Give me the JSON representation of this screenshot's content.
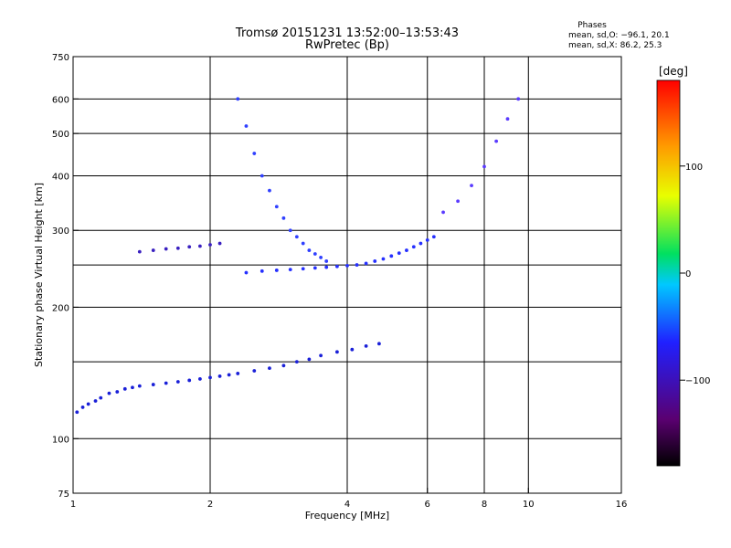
{
  "chart_data": {
    "type": "scatter",
    "title": "Tromsø 20151231 13:52:00–13:53:43",
    "subtitle": "RwPretec (Bp)",
    "xlabel": "Frequency [MHz]",
    "ylabel": "Stationary phase Virtual Height [km]",
    "x_scale": "log",
    "y_scale": "log",
    "xlim": [
      1,
      16
    ],
    "ylim": [
      75,
      750
    ],
    "x_ticks": [
      1,
      2,
      4,
      6,
      8,
      10,
      16
    ],
    "x_tick_labels": [
      "1",
      "2",
      "4",
      "6",
      "8",
      "10",
      "16"
    ],
    "y_ticks": [
      75,
      100,
      200,
      300,
      400,
      500,
      600,
      750
    ],
    "y_tick_labels": [
      "75",
      "100",
      "200",
      "300",
      "400",
      "500",
      "600",
      "750"
    ],
    "x_grid": [
      2,
      4,
      6,
      8,
      10
    ],
    "y_grid": [
      100,
      150,
      200,
      250,
      300,
      400,
      500,
      600
    ],
    "grid": true,
    "legend": {
      "title": "Phases",
      "lines": [
        "mean, sd,O: −96.1, 20.1",
        "mean, sd,X:  86.2, 25.3"
      ],
      "position": "top-right"
    },
    "colorbar": {
      "label": "[deg]",
      "range": [
        -180,
        180
      ],
      "ticks": [
        100,
        0,
        -100
      ],
      "tick_labels": [
        "100",
        "0",
        "−100"
      ],
      "colors": [
        "#000000",
        "#5a0070",
        "#2020ff",
        "#00c8ff",
        "#00e060",
        "#e8ff00",
        "#ff9a00",
        "#ff0000"
      ]
    },
    "series": [
      {
        "x": [
          1.02,
          1.05,
          1.08,
          1.12,
          1.15,
          1.2,
          1.25,
          1.3,
          1.35,
          1.4,
          1.5,
          1.6,
          1.7,
          1.8,
          1.9,
          2.0,
          2.1,
          2.2,
          2.3,
          2.5,
          2.7,
          2.9,
          3.1,
          3.3,
          3.5,
          3.8,
          4.1,
          4.4,
          4.7
        ],
        "y": [
          115,
          118,
          120,
          122,
          124,
          127,
          128,
          130,
          131,
          132,
          133,
          134,
          135,
          136,
          137,
          138,
          139,
          140,
          141,
          143,
          145,
          147,
          150,
          152,
          155,
          158,
          160,
          163,
          165
        ]
      },
      {
        "x": [
          2.4,
          2.6,
          2.8,
          3.0,
          3.2,
          3.4,
          3.6,
          3.8,
          4.0,
          4.2,
          4.4,
          4.6,
          4.8,
          5.0,
          5.2,
          5.4,
          5.6,
          5.8,
          6.0,
          6.2
        ],
        "y": [
          240,
          242,
          243,
          244,
          245,
          246,
          247,
          248,
          249,
          250,
          252,
          255,
          258,
          262,
          266,
          270,
          275,
          280,
          285,
          290
        ]
      },
      {
        "x": [
          2.3,
          2.4,
          2.5,
          2.6,
          2.7,
          2.8,
          2.9,
          3.0,
          3.1,
          3.2,
          3.3,
          3.4,
          3.5,
          3.6
        ],
        "y": [
          600,
          520,
          450,
          400,
          370,
          340,
          320,
          300,
          290,
          280,
          270,
          265,
          260,
          255
        ]
      },
      {
        "x": [
          1.4,
          1.5,
          1.6,
          1.7,
          1.8,
          1.9,
          2.0,
          2.1
        ],
        "y": [
          268,
          270,
          272,
          273,
          275,
          276,
          278,
          280
        ]
      },
      {
        "x": [
          6.5,
          7.0,
          7.5,
          8.0,
          8.5,
          9.0,
          9.5
        ],
        "y": [
          330,
          350,
          380,
          420,
          480,
          540,
          600
        ]
      }
    ]
  }
}
